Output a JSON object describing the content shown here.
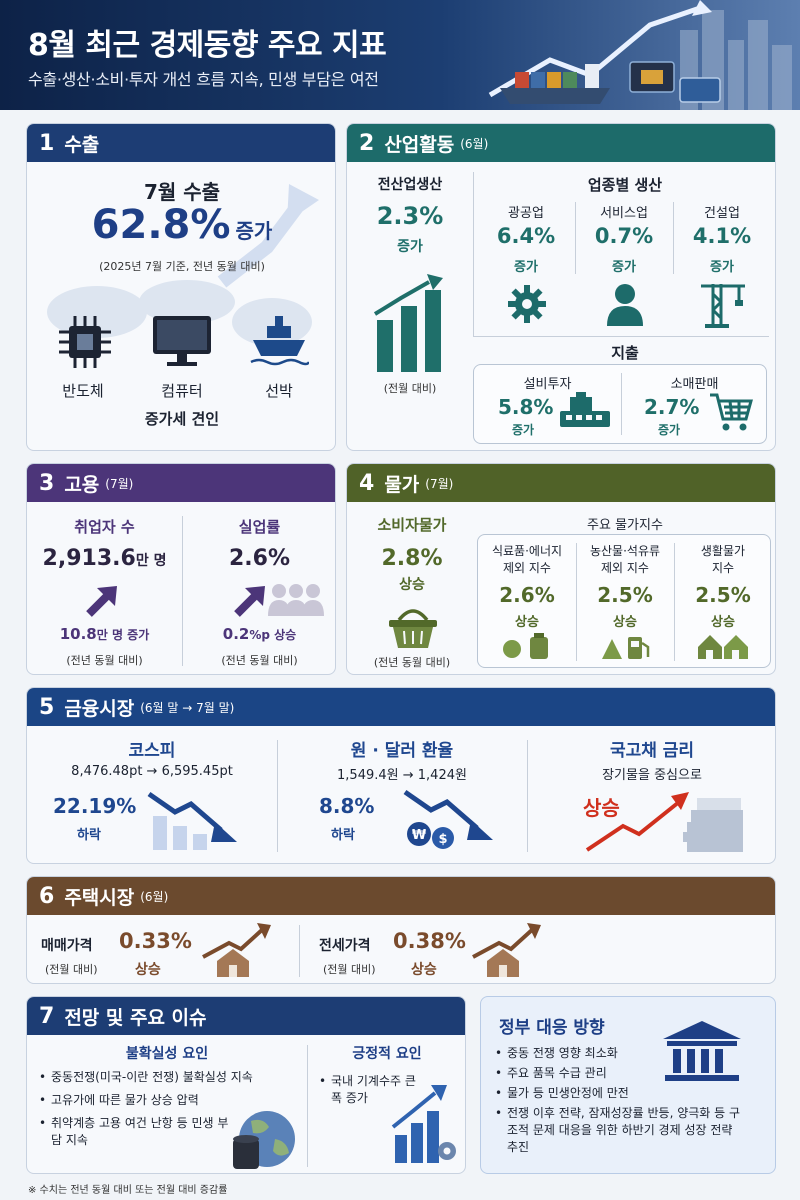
{
  "header": {
    "title": "8월 최근 경제동향 주요 지표",
    "subtitle": "수출·생산·소비·투자 개선 흐름 지속, 민생 부담은 여전"
  },
  "s1": {
    "num": "1",
    "title": "수출",
    "heading": "7월 수출",
    "value": "62.8%",
    "unit": "증가",
    "note": "(2025년 7월 기준, 전년 동월 대비)",
    "items": [
      {
        "label": "반도체",
        "icon": "chip-icon"
      },
      {
        "label": "컴퓨터",
        "icon": "monitor-icon"
      },
      {
        "label": "선박",
        "icon": "ship-icon"
      }
    ],
    "lead": "증가세 견인"
  },
  "s2": {
    "num": "2",
    "title": "산업활동",
    "sub": "(6월)",
    "all": {
      "label": "전산업생산",
      "value": "2.3%",
      "unit": "증가",
      "note": "(전월 대비)"
    },
    "sector_title": "업종별 생산",
    "sectors": [
      {
        "label": "광공업",
        "value": "6.4%",
        "unit": "증가"
      },
      {
        "label": "서비스업",
        "value": "0.7%",
        "unit": "증가"
      },
      {
        "label": "건설업",
        "value": "4.1%",
        "unit": "증가"
      }
    ],
    "spend_title": "지출",
    "spend": [
      {
        "label": "설비투자",
        "value": "5.8%",
        "unit": "증가"
      },
      {
        "label": "소매판매",
        "value": "2.7%",
        "unit": "증가"
      }
    ]
  },
  "s3": {
    "num": "3",
    "title": "고용",
    "sub": "(7월)",
    "emp": {
      "label": "취업자 수",
      "value": "2,913.6",
      "unit": "만 명",
      "chg": "10.8",
      "chg_unit": "만 명 증가",
      "note": "(전년 동월 대비)"
    },
    "unemp": {
      "label": "실업률",
      "value": "2.6%",
      "chg": "0.2",
      "chg_unit": "%p 상승",
      "note": "(전년 동월 대비)"
    }
  },
  "s4": {
    "num": "4",
    "title": "물가",
    "sub": "(7월)",
    "cpi": {
      "label": "소비자물가",
      "value": "2.8%",
      "unit": "상승",
      "note": "(전년 동월 대비)"
    },
    "idx_title": "주요 물가지수",
    "idx": [
      {
        "label1": "식료품·에너지",
        "label2": "제외 지수",
        "value": "2.6%",
        "unit": "상승"
      },
      {
        "label1": "농산물·석유류",
        "label2": "제외 지수",
        "value": "2.5%",
        "unit": "상승"
      },
      {
        "label1": "생활물가",
        "label2": "지수",
        "value": "2.5%",
        "unit": "상승"
      }
    ]
  },
  "s5": {
    "num": "5",
    "title": "금융시장",
    "sub": "(6월 말 → 7월 말)",
    "kospi": {
      "label": "코스피",
      "range": "8,476.48pt → 6,595.45pt",
      "value": "22.19%",
      "unit": "하락"
    },
    "fx": {
      "label": "원 · 달러 환율",
      "range": "1,549.4원 → 1,424원",
      "value": "8.8%",
      "unit": "하락"
    },
    "bond": {
      "label": "국고채 금리",
      "note": "장기물을 중심으로",
      "value": "상승"
    }
  },
  "s6": {
    "num": "6",
    "title": "주택시장",
    "sub": "(6월)",
    "sale": {
      "label": "매매가격",
      "note": "(전월 대비)",
      "value": "0.33%",
      "unit": "상승"
    },
    "rent": {
      "label": "전세가격",
      "note": "(전월 대비)",
      "value": "0.38%",
      "unit": "상승"
    }
  },
  "s7": {
    "num": "7",
    "title": "전망 및 주요 이슈",
    "neg_title": "불확실성 요인",
    "neg": [
      "중동전쟁(미국-이란 전쟁) 불확실성 지속",
      "고유가에 따른 물가 상승 압력",
      "취약계층 고용 여건 난항 등 민생 부담 지속"
    ],
    "pos_title": "긍정적 요인",
    "pos": [
      "국내 기계수주 큰 폭 증가"
    ]
  },
  "gov": {
    "title": "정부 대응 방향",
    "items": [
      "중동 전쟁 영향 최소화",
      "주요 품목 수급 관리",
      "물가 등 민생안정에 만전",
      "전쟁 이후 전략, 잠재성장률 반등, 양극화 등 구조적 문제 대응을 위한 하반기 경제 성장 전략 추진"
    ]
  },
  "footnote": "※ 수치는 전년 동월 대비 또는 전월 대비 증감률"
}
